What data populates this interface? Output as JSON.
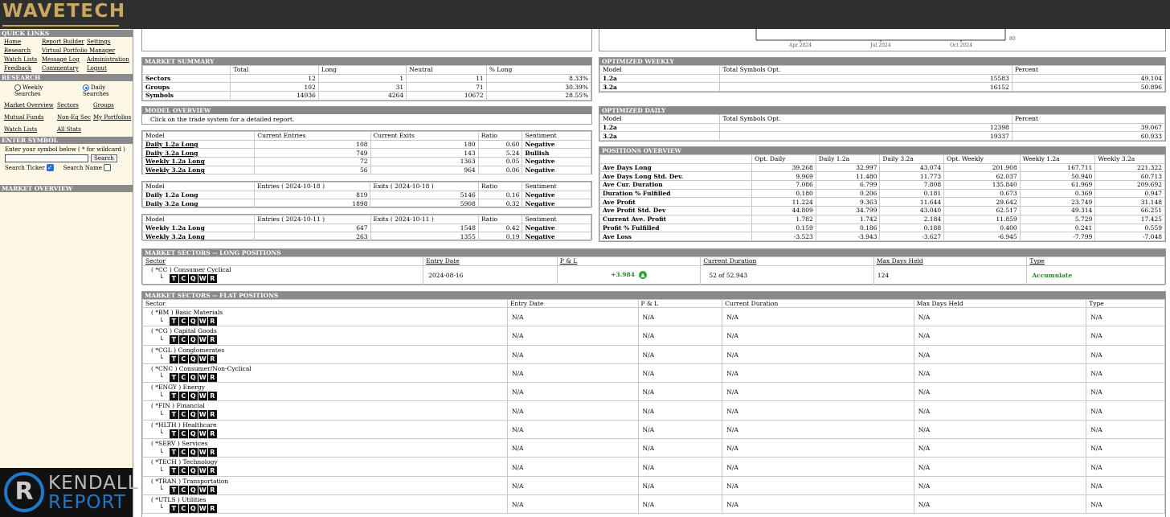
{
  "brand": {
    "logo_text": "WAVETECH"
  },
  "sidebar": {
    "quick_links_title": "QUICK LINKS",
    "quick_links": [
      "Home",
      "Report Builder",
      "Settings",
      "Research",
      "Virtual Portfolio Manager",
      "",
      "Watch Lists",
      "Message Log",
      "Administration",
      "Feedback",
      "Commentary",
      "Logout"
    ],
    "research_title": "RESEARCH",
    "weekly_label": "Weekly Searches",
    "daily_label": "Daily Searches",
    "research_links": [
      "Market Overview",
      "Sectors",
      "Groups",
      "Mutual Funds",
      "Non-Eq Sec",
      "My Portfolios",
      "Watch Lists",
      "All Stats"
    ],
    "enter_symbol_title": "ENTER SYMBOL",
    "enter_symbol_hint": "Enter your symbol below ( * for wildcard )",
    "search_button": "Search",
    "search_ticker_label": "Search Ticker",
    "search_name_label": "Search Name",
    "market_overview_title": "MARKET OVERVIEW",
    "kendall_line1": "KENDALL",
    "kendall_line2": "REPORT",
    "kendall_mark": "R"
  },
  "chart_strip": {
    "ticks": [
      "Apr 2024",
      "Jul 2024",
      "Oct 2024"
    ],
    "right_label": "80"
  },
  "market_summary": {
    "title": "MARKET SUMMARY",
    "headers": [
      "",
      "Total",
      "Long",
      "Neutral",
      "% Long"
    ],
    "rows": [
      [
        "Sectors",
        "12",
        "1",
        "11",
        "8.33%"
      ],
      [
        "Groups",
        "102",
        "31",
        "71",
        "30.39%"
      ],
      [
        "Symbols",
        "14936",
        "4264",
        "10672",
        "28.55%"
      ]
    ]
  },
  "model_overview": {
    "title": "MODEL OVERVIEW",
    "note": "Click on the trade system for a detailed report.",
    "t1": {
      "headers": [
        "Model",
        "Current Entries",
        "Current Exits",
        "Ratio",
        "Sentiment"
      ],
      "rows": [
        [
          "Daily 1.2a Long",
          "108",
          "180",
          "0.60",
          "Negative"
        ],
        [
          "Daily 3.2a Long",
          "749",
          "143",
          "5.24",
          "Bullish"
        ],
        [
          "Weekly 1.2a Long",
          "72",
          "1363",
          "0.05",
          "Negative"
        ],
        [
          "Weekly 3.2a Long",
          "56",
          "964",
          "0.06",
          "Negative"
        ]
      ]
    },
    "t2": {
      "headers": [
        "Model",
        "Entries ( 2024-10-18 )",
        "Exits ( 2024-10-18 )",
        "Ratio",
        "Sentiment"
      ],
      "rows": [
        [
          "Daily 1.2a Long",
          "819",
          "5146",
          "0.16",
          "Negative"
        ],
        [
          "Daily 3.2a Long",
          "1898",
          "5908",
          "0.32",
          "Negative"
        ]
      ]
    },
    "t3": {
      "headers": [
        "Model",
        "Entries ( 2024-10-11 )",
        "Exits ( 2024-10-11 )",
        "Ratio",
        "Sentiment"
      ],
      "rows": [
        [
          "Weekly 1.2a Long",
          "647",
          "1548",
          "0.42",
          "Negative"
        ],
        [
          "Weekly 3.2a Long",
          "263",
          "1355",
          "0.19",
          "Negative"
        ]
      ]
    }
  },
  "optimized_weekly": {
    "title": "OPTIMIZED WEEKLY",
    "headers": [
      "Model",
      "Total Symbols Opt.",
      "Percent"
    ],
    "rows": [
      [
        "1.2a",
        "15583",
        "49.104"
      ],
      [
        "3.2a",
        "16152",
        "50.896"
      ]
    ]
  },
  "optimized_daily": {
    "title": "OPTIMIZED DAILY",
    "headers": [
      "Model",
      "Total Symbols Opt.",
      "Percent"
    ],
    "rows": [
      [
        "1.2a",
        "12398",
        "39.067"
      ],
      [
        "3.2a",
        "19337",
        "60.933"
      ]
    ]
  },
  "positions_overview": {
    "title": "POSITIONS OVERVIEW",
    "headers": [
      "",
      "Opt. Daily",
      "Daily 1.2a",
      "Daily 3.2a",
      "Opt. Weekly",
      "Weekly 1.2a",
      "Weekly 3.2a"
    ],
    "rows": [
      [
        "Ave Days Long",
        "39.268",
        "32.997",
        "43.074",
        "201.908",
        "167.711",
        "221.322"
      ],
      [
        "Ave Days Long Std. Dev.",
        "9.969",
        "11.480",
        "11.773",
        "62.037",
        "50.940",
        "60.713"
      ],
      [
        "Ave Cur. Duration",
        "7.086",
        "6.799",
        "7.808",
        "135.840",
        "61.969",
        "209.692"
      ],
      [
        "Duration % Fulfilled",
        "0.180",
        "0.206",
        "0.181",
        "0.673",
        "0.369",
        "0.947"
      ],
      [
        "Ave Profit",
        "11.224",
        "9.363",
        "11.644",
        "29.642",
        "23.749",
        "31.148"
      ],
      [
        "Ave Profit Std. Dev",
        "44.809",
        "34.799",
        "43.040",
        "62.517",
        "49.314",
        "66.251"
      ],
      [
        "Current Ave. Profit",
        "1.782",
        "1.742",
        "2.184",
        "11.859",
        "5.729",
        "17.425"
      ],
      [
        "Profit % Fulfilled",
        "0.159",
        "0.186",
        "0.188",
        "0.400",
        "0.241",
        "0.559"
      ],
      [
        "Ave Loss",
        "-3.523",
        "-3.943",
        "-3.627",
        "-6.945",
        "-7.799",
        "-7.048"
      ]
    ]
  },
  "long_positions": {
    "title": "MARKET SECTORS -- LONG POSITIONS",
    "headers": [
      "Sector",
      "Entry Date",
      "P & L",
      "Current Duration",
      "Max Days Held",
      "Type"
    ],
    "rows": [
      [
        "( *CC ) Consumer Cyclical",
        "2024-08-16",
        "+3.984",
        "52 of 52.943",
        "124",
        "Accumulate"
      ]
    ]
  },
  "flat_positions": {
    "title": "MARKET SECTORS -- FLAT POSITIONS",
    "headers": [
      "Sector",
      "Entry Date",
      "P & L",
      "Current Duration",
      "Max Days Held",
      "Type"
    ],
    "sectors": [
      "( *BM ) Basic Materials",
      "( *CG ) Capital Goods",
      "( *CGL ) Conglomerates",
      "( *CNC ) Consumer/Non-Cyclical",
      "( *ENGY ) Energy",
      "( *FIN ) Financial",
      "( *HLTH ) Healthcare",
      "( *SERV ) Services",
      "( *TECH ) Technology",
      "( *TRAN ) Transportation",
      "( *UTLS ) Utilities"
    ],
    "na": "N/A"
  },
  "tcqwr_letters": [
    "T",
    "C",
    "Q",
    "W",
    "R"
  ],
  "tree_glyph": "└"
}
